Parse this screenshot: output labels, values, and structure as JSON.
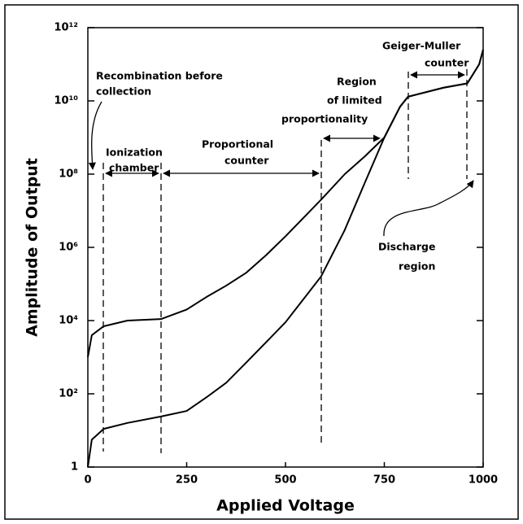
{
  "chart_data": {
    "type": "line",
    "xlabel": "Applied Voltage",
    "ylabel": "Amplitude of Output",
    "log_y": true,
    "x": [
      0,
      10,
      40,
      100,
      185,
      250,
      300,
      350,
      400,
      450,
      500,
      590,
      650,
      700,
      750,
      790,
      810,
      900,
      960,
      990,
      1000
    ],
    "series": [
      {
        "color": "#000000",
        "values": [
          1000,
          4000,
          7000,
          10000,
          11000,
          20000,
          44000,
          90000,
          200000,
          600000,
          2000000,
          20000000,
          100000000,
          300000000,
          1000000000,
          7000000000,
          13000000000,
          23000000000,
          30000000000,
          100000000000,
          250000000000
        ]
      },
      {
        "color": "#000000",
        "values": [
          1,
          5.6,
          11,
          16,
          24,
          34,
          80,
          200,
          700,
          2500,
          9000,
          160000,
          3000000,
          56000000,
          1000000000,
          7000000000,
          13000000000,
          23000000000,
          30000000000,
          100000000000,
          250000000000
        ]
      }
    ],
    "xlim": [
      0,
      1000
    ],
    "xticks": [
      0,
      250,
      500,
      750,
      1000
    ],
    "ylim": [
      1,
      1000000000000
    ],
    "yticks": [
      1,
      {
        "value": 100,
        "label": "10²"
      },
      {
        "value": 10000,
        "label": "10⁴"
      },
      {
        "value": 1000000,
        "label": "10⁶"
      },
      {
        "value": 100000000,
        "label": "10⁸"
      },
      {
        "value": 10000000000,
        "label": "10¹⁰"
      },
      {
        "value": 1000000000000,
        "label": "10¹²"
      }
    ],
    "annotations": [
      {
        "lines": [
          "Recombination before",
          "collection"
        ]
      },
      {
        "lines": [
          "Ionization",
          "chamber"
        ]
      },
      {
        "lines": [
          "Proportional",
          "counter"
        ]
      },
      {
        "lines": [
          "Region",
          "of limited",
          "proportionality"
        ]
      },
      {
        "lines": [
          "Geiger-Muller",
          "counter"
        ]
      },
      {
        "lines": [
          "Discharge",
          "region"
        ]
      }
    ]
  }
}
